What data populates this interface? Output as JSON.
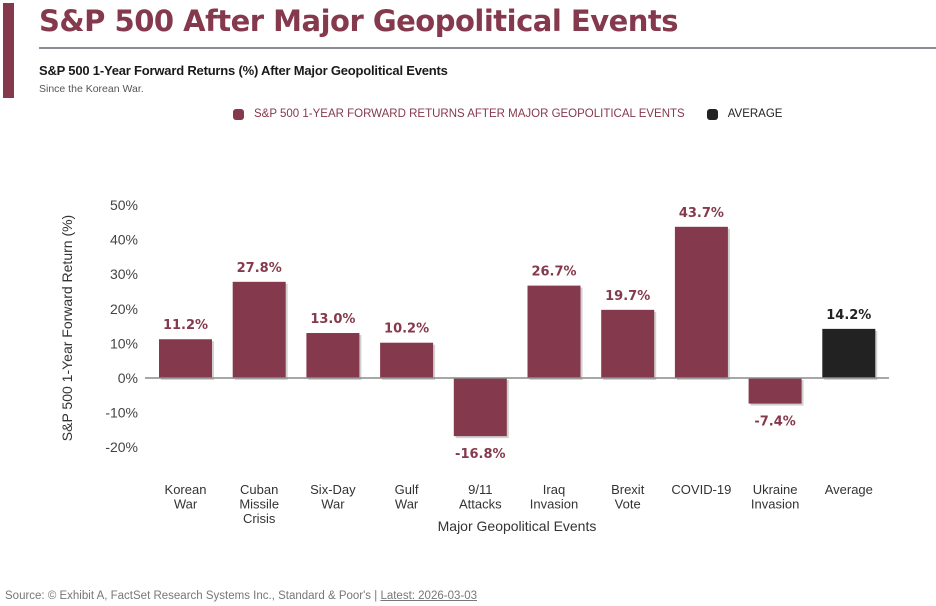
{
  "header": {
    "title": "S&P 500 After Major Geopolitical Events",
    "subtitle": "S&P 500 1-Year Forward Returns (%) After Major Geopolitical Events",
    "caption": "Since the Korean War."
  },
  "colors": {
    "accent": "#85394d",
    "average": "#222222",
    "divider": "#8a8d96"
  },
  "footer": {
    "source": "Source: © Exhibit A, FactSet Research Systems Inc., Standard & Poor's | ",
    "latest": "Latest: 2026-03-03"
  },
  "chart_data": {
    "type": "bar",
    "title": "S&P 500 1-Year Forward Returns (%) After Major Geopolitical Events",
    "xlabel": "Major Geopolitical Events",
    "ylabel": "S&P 500 1-Year Forward Return (%)",
    "ylim": [
      -20,
      50
    ],
    "yticks": [
      50,
      40,
      30,
      20,
      10,
      0,
      -10,
      -20
    ],
    "ytick_labels": [
      "50%",
      "40%",
      "30%",
      "20%",
      "10%",
      "0%",
      "-10%",
      "-20%"
    ],
    "grid": false,
    "legend_position": "top-center",
    "legend": [
      {
        "label": "S&P 500 1-YEAR FORWARD RETURNS AFTER MAJOR GEOPOLITICAL EVENTS",
        "color": "#85394d"
      },
      {
        "label": "AVERAGE",
        "color": "#222222"
      }
    ],
    "categories": [
      [
        "Korean",
        "War"
      ],
      [
        "Cuban",
        "Missile",
        "Crisis"
      ],
      [
        "Six-Day",
        "War"
      ],
      [
        "Gulf",
        "War"
      ],
      [
        "9/11",
        "Attacks"
      ],
      [
        "Iraq",
        "Invasion"
      ],
      [
        "Brexit",
        "Vote"
      ],
      [
        "COVID-19"
      ],
      [
        "Ukraine",
        "Invasion"
      ],
      [
        "Average"
      ]
    ],
    "values": [
      11.2,
      27.8,
      13.0,
      10.2,
      -16.8,
      26.7,
      19.7,
      43.7,
      -7.4,
      14.2
    ],
    "value_labels": [
      "11.2%",
      "27.8%",
      "13.0%",
      "10.2%",
      "-16.8%",
      "26.7%",
      "19.7%",
      "43.7%",
      "-7.4%",
      "14.2%"
    ],
    "series_type": [
      "event",
      "event",
      "event",
      "event",
      "event",
      "event",
      "event",
      "event",
      "event",
      "average"
    ]
  }
}
